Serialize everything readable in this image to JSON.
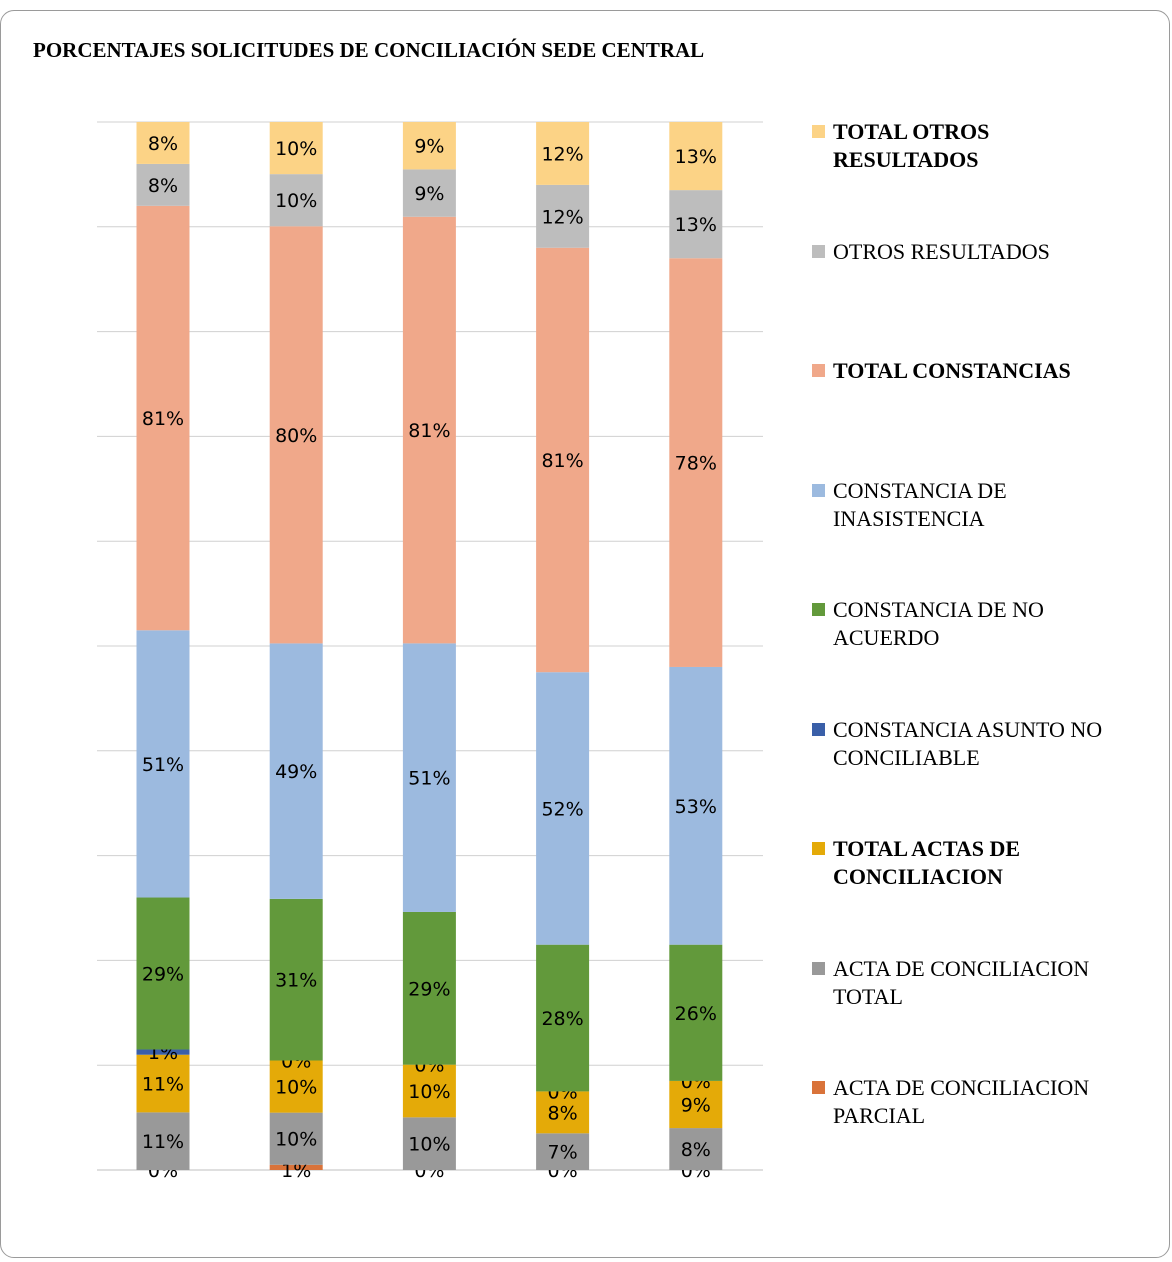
{
  "title": "PORCENTAJES SOLICITUDES DE CONCILIACIÓN SEDE CENTRAL",
  "chart_data": {
    "type": "bar",
    "stacked": true,
    "title": "PORCENTAJES SOLICITUDES DE CONCILIACIÓN SEDE CENTRAL",
    "xlabel": "",
    "ylabel": "",
    "categories": [
      "",
      "",
      "",
      "",
      ""
    ],
    "grid": true,
    "legend_position": "right",
    "series": [
      {
        "name": "ACTA DE CONCILIACION PARCIAL",
        "color": "#D9733A",
        "bold": false,
        "values": [
          0,
          1,
          0,
          0,
          0
        ]
      },
      {
        "name": "ACTA DE CONCILIACION TOTAL",
        "color": "#999999",
        "bold": false,
        "values": [
          11,
          10,
          10,
          7,
          8
        ]
      },
      {
        "name": "TOTAL ACTAS DE CONCILIACION",
        "color": "#E4AA08",
        "bold": true,
        "values": [
          11,
          10,
          10,
          8,
          9
        ]
      },
      {
        "name": "CONSTANCIA ASUNTO NO CONCILIABLE",
        "color": "#3A5FA8",
        "bold": false,
        "values": [
          1,
          0,
          0,
          0,
          0
        ]
      },
      {
        "name": "CONSTANCIA DE NO ACUERDO",
        "color": "#62993B",
        "bold": false,
        "values": [
          29,
          31,
          29,
          28,
          26
        ]
      },
      {
        "name": "CONSTANCIA DE INASISTENCIA",
        "color": "#9CBADF",
        "bold": false,
        "values": [
          51,
          49,
          51,
          52,
          53
        ]
      },
      {
        "name": "TOTAL CONSTANCIAS",
        "color": "#F0A88A",
        "bold": true,
        "values": [
          81,
          80,
          81,
          81,
          78
        ]
      },
      {
        "name": "OTROS RESULTADOS",
        "color": "#BDBDBD",
        "bold": false,
        "values": [
          8,
          10,
          9,
          12,
          13
        ]
      },
      {
        "name": "TOTAL OTROS RESULTADOS",
        "color": "#FCD386",
        "bold": true,
        "values": [
          8,
          10,
          9,
          12,
          13
        ]
      }
    ],
    "value_suffix": "%"
  },
  "legend_display": [
    {
      "text": "TOTAL OTROS\nRESULTADOS",
      "color": "#FCD386",
      "bold": true
    },
    {
      "text": "OTROS RESULTADOS",
      "color": "#BDBDBD",
      "bold": false
    },
    {
      "text": "TOTAL CONSTANCIAS",
      "color": "#F0A88A",
      "bold": true
    },
    {
      "text": "CONSTANCIA DE\nINASISTENCIA",
      "color": "#9CBADF",
      "bold": false
    },
    {
      "text": "CONSTANCIA DE NO\nACUERDO",
      "color": "#62993B",
      "bold": false
    },
    {
      "text": "CONSTANCIA ASUNTO NO\nCONCILIABLE",
      "color": "#3A5FA8",
      "bold": false
    },
    {
      "text": "TOTAL ACTAS DE\nCONCILIACION",
      "color": "#E4AA08",
      "bold": true
    },
    {
      "text": "ACTA DE CONCILIACION\nTOTAL",
      "color": "#999999",
      "bold": false
    },
    {
      "text": "ACTA DE CONCILIACION\nPARCIAL",
      "color": "#D9733A",
      "bold": false
    }
  ]
}
